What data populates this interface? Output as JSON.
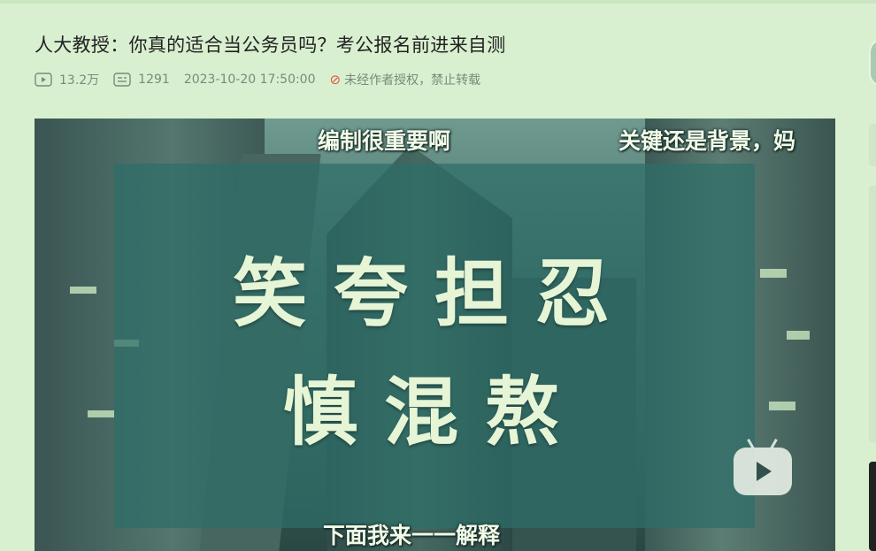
{
  "header": {
    "title": "人大教授：你真的适合当公务员吗？考公报名前进来自测",
    "views": "13.2万",
    "comments": "1291",
    "datetime": "2023-10-20 17:50:00",
    "copyright_notice": "未经作者授权，禁止转载",
    "icons": {
      "views": "play-count-icon",
      "comments": "danmaku-count-icon",
      "copyright": "no-repost-icon"
    }
  },
  "video": {
    "subtitle_top_left": "编制很重要啊",
    "subtitle_top_right": "关键还是背景，妈",
    "subtitle_bottom": "下面我来一一解释",
    "overlay_line1": "笑夸担忍",
    "overlay_line2": "慎混熬",
    "watermark": "bilibili",
    "logo_icon": "bilibili-tv-icon"
  },
  "colors": {
    "page_bg": "#d8f0d0",
    "overlay": "#2e6e68",
    "ban_red": "#e05a3a"
  }
}
